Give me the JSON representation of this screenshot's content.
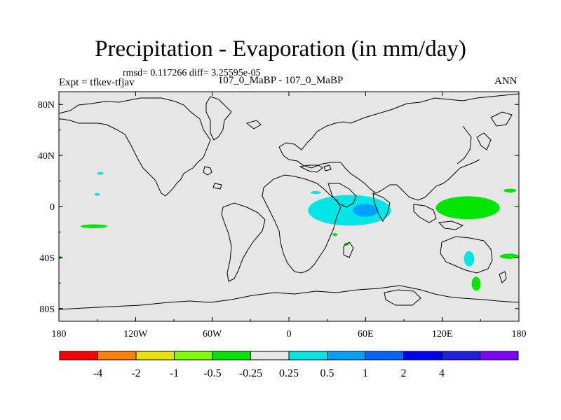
{
  "title": "Precipitation - Evaporation (in mm/day)",
  "stats": "rmsd= 0.117266 diff= 3.25595e-05",
  "subtitle": "107_0_MaBP - 107_0_MaBP",
  "experiment": "Expt = tfkev-tfjav",
  "season": "ANN",
  "chart_data": {
    "type": "heatmap",
    "projection": "cylindrical equidistant",
    "lon_range": [
      -180,
      180
    ],
    "lat_range": [
      -90,
      90
    ],
    "x_ticks": [
      {
        "value": -180,
        "label": "180"
      },
      {
        "value": -120,
        "label": "120W"
      },
      {
        "value": -60,
        "label": "60W"
      },
      {
        "value": 0,
        "label": "0"
      },
      {
        "value": 60,
        "label": "60E"
      },
      {
        "value": 120,
        "label": "120E"
      },
      {
        "value": 180,
        "label": "180"
      }
    ],
    "y_ticks": [
      {
        "value": 80,
        "label": "80N"
      },
      {
        "value": 40,
        "label": "40N"
      },
      {
        "value": 0,
        "label": "0"
      },
      {
        "value": -40,
        "label": "40S"
      },
      {
        "value": -80,
        "label": "80S"
      }
    ],
    "background_color": "#e6e6e6",
    "colorbar": {
      "colors": [
        "#ff0000",
        "#ff8000",
        "#e6e600",
        "#80ff00",
        "#00e600",
        "#e6e6e6",
        "#00e6e6",
        "#00a0ff",
        "#0066ff",
        "#0000ff",
        "#2020e0",
        "#8000ff"
      ],
      "labels": [
        "-4",
        "-2",
        "-1",
        "-0.5",
        "-0.25",
        "0.25",
        "0.5",
        "1",
        "2",
        "4"
      ]
    },
    "regions": [
      {
        "level": "0.25 to 0.5",
        "color": "#00e6e6",
        "lon": [
          -150,
          -145
        ],
        "lat": [
          25,
          27
        ]
      },
      {
        "level": "0.25 to 0.5",
        "color": "#00e6e6",
        "lon": [
          -152,
          -148
        ],
        "lat": [
          9,
          10
        ]
      },
      {
        "level": "-0.5 to -0.25",
        "color": "#00e600",
        "lon": [
          -163,
          -142
        ],
        "lat": [
          -17,
          -14
        ]
      },
      {
        "level": "-0.5 to -0.25",
        "color": "#00e600",
        "lon": [
          -180,
          -178
        ],
        "lat": [
          -41,
          -39
        ]
      },
      {
        "level": "0.25 to 0.5",
        "color": "#00e6e6",
        "lon": [
          15,
          80
        ],
        "lat": [
          -15,
          9
        ]
      },
      {
        "level": "0.5 to 1",
        "color": "#00a0ff",
        "lon": [
          50,
          70
        ],
        "lat": [
          -8,
          2
        ]
      },
      {
        "level": "0.25 to 0.5",
        "color": "#00e6e6",
        "lon": [
          17,
          25
        ],
        "lat": [
          10,
          12
        ]
      },
      {
        "level": "-0.5 to -0.25",
        "color": "#00e600",
        "lon": [
          115,
          165
        ],
        "lat": [
          -10,
          8
        ]
      },
      {
        "level": "-0.5 to -0.25",
        "color": "#00e600",
        "lon": [
          168,
          178
        ],
        "lat": [
          11,
          14
        ]
      },
      {
        "level": "0.25 to 0.5",
        "color": "#00e6e6",
        "lon": [
          137,
          145
        ],
        "lat": [
          -47,
          -35
        ]
      },
      {
        "level": "-0.5 to -0.25",
        "color": "#00e600",
        "lon": [
          143,
          150
        ],
        "lat": [
          -66,
          -55
        ]
      },
      {
        "level": "-0.5 to -0.25",
        "color": "#00e600",
        "lon": [
          165,
          180
        ],
        "lat": [
          -41,
          -37
        ]
      },
      {
        "level": "-0.5 to -0.25",
        "color": "#00e600",
        "lon": [
          34,
          38
        ],
        "lat": [
          -23,
          -21
        ]
      },
      {
        "level": "-0.5 to -0.25",
        "color": "#00e600",
        "lon": [
          43,
          47
        ],
        "lat": [
          -30,
          -29
        ]
      }
    ]
  }
}
